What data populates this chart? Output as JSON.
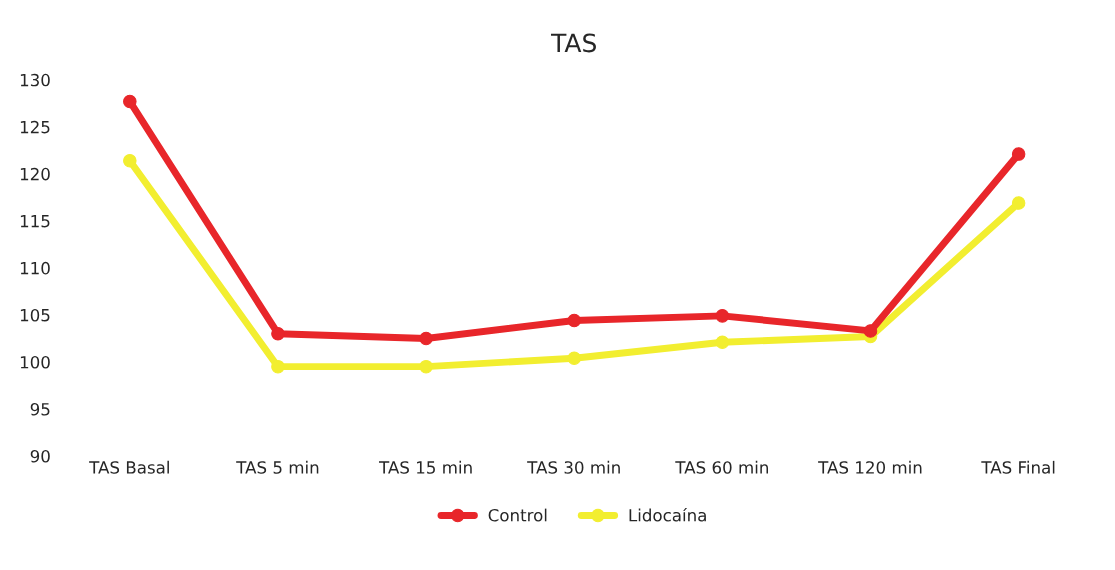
{
  "chart_data": {
    "type": "line",
    "title": "TAS",
    "categories": [
      "TAS Basal",
      "TAS 5 min",
      "TAS 15 min",
      "TAS 30 min",
      "TAS 60 min",
      "TAS 120 min",
      "TAS Final"
    ],
    "series": [
      {
        "name": "Control",
        "color": "#e8262a",
        "values": [
          127.7,
          103.0,
          102.5,
          104.4,
          104.9,
          103.3,
          122.1
        ]
      },
      {
        "name": "Lidocaína",
        "color": "#f2ee30",
        "values": [
          121.4,
          99.5,
          99.5,
          100.4,
          102.1,
          102.7,
          116.9
        ]
      }
    ],
    "ylim": [
      90,
      130
    ],
    "yticks": [
      90,
      95,
      100,
      105,
      110,
      115,
      120,
      125,
      130
    ],
    "grid": false,
    "legend": "bottom",
    "marker": "circle",
    "line_style": "solid"
  }
}
